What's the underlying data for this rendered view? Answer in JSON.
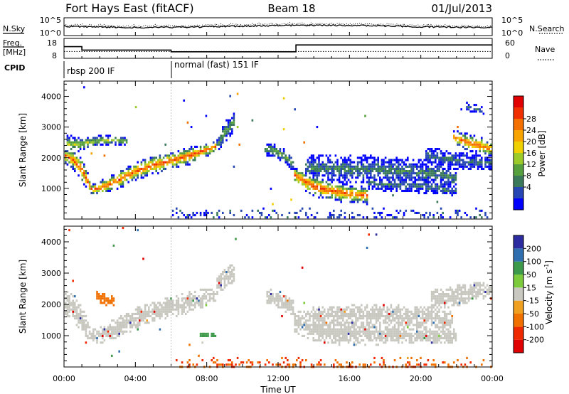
{
  "header": {
    "title": "Fort Hays East (fitACF)",
    "beam": "Beam 18",
    "date": "01/Jul/2013"
  },
  "noise_panel": {
    "left_label": "N.Sky",
    "right_label": "N.Search",
    "left_ticks": [
      "10^5",
      "10^0"
    ],
    "right_ticks": [
      "10^5",
      "10^0"
    ]
  },
  "freq_panel": {
    "left_label_line1": "Freq.",
    "left_label_line2": "[MHz]",
    "right_label": "Nave",
    "left_ticks": [
      18,
      8
    ],
    "right_ticks": [
      60,
      0
    ]
  },
  "cpid_panel": {
    "label": "CPID",
    "segments": [
      {
        "start_hour": 0,
        "end_hour": 6,
        "label": "rbsp 200 IF"
      },
      {
        "start_hour": 6,
        "end_hour": 24,
        "label": "normal (fast) 151 IF"
      }
    ]
  },
  "power_colorbar": {
    "title": "Power [dB]",
    "ticks": [
      4,
      8,
      12,
      16,
      20,
      24,
      28
    ],
    "colors": [
      "#0000ff",
      "#2646b4",
      "#3a7a5a",
      "#56a03e",
      "#9ccb2a",
      "#f0d000",
      "#f7a300",
      "#f47000",
      "#f03000",
      "#e00000"
    ]
  },
  "velocity_colorbar": {
    "title": "Velocity [m s^-1]",
    "title_main": "Velocity [m s",
    "title_sup": "-1",
    "title_end": "]",
    "ticks": [
      200,
      100,
      50,
      15,
      -15,
      -50,
      -100,
      -200
    ],
    "colors": [
      "#2c2ca0",
      "#2f6fb0",
      "#3d9a4a",
      "#7ccb3c",
      "#c8c8c0",
      "#f0a020",
      "#f07000",
      "#f02a00",
      "#e00000"
    ]
  },
  "axes": {
    "xlabel": "Time UT",
    "ylabel": "Slant Range [km]",
    "xticks": [
      "00:00",
      "04:00",
      "08:00",
      "12:00",
      "16:00",
      "20:00",
      "00:00"
    ],
    "yticks": [
      1000,
      2000,
      3000,
      4000
    ]
  },
  "chart_data": {
    "type": "heatmap",
    "x_unit": "hour UT",
    "xlim": [
      0,
      24
    ],
    "ylim": [
      0,
      4500
    ],
    "frequency_mhz": [
      {
        "start_hour": 0,
        "end_hour": 1,
        "value": 14
      },
      {
        "start_hour": 1,
        "end_hour": 6,
        "value": 12
      },
      {
        "start_hour": 6,
        "end_hour": 13,
        "value": 11
      },
      {
        "start_hour": 13,
        "end_hour": 24,
        "value": 15
      }
    ],
    "nave": [
      {
        "start_hour": 0,
        "end_hour": 24,
        "value": 19
      }
    ],
    "power_bands": [
      {
        "x": [
          0.0,
          0.5,
          1.0,
          1.5,
          2.0,
          3.0,
          4.0,
          5.0,
          6.0,
          7.0,
          8.0,
          8.5
        ],
        "center_km": [
          2100,
          1950,
          1600,
          1000,
          1050,
          1300,
          1600,
          1800,
          1950,
          2100,
          2300,
          2400
        ],
        "half_width_km": [
          200,
          300,
          350,
          150,
          200,
          250,
          250,
          280,
          250,
          250,
          200,
          150
        ],
        "peak_db": 27
      },
      {
        "x": [
          0.1,
          0.5,
          1.0,
          1.5,
          2.0,
          3.0,
          3.5
        ],
        "center_km": [
          2500,
          2450,
          2500,
          2550,
          2600,
          2600,
          2550
        ],
        "half_width_km": [
          250,
          250,
          200,
          150,
          150,
          120,
          100
        ],
        "peak_db": 16
      },
      {
        "x": [
          8.5,
          8.8,
          9.0,
          9.3,
          9.5
        ],
        "center_km": [
          2400,
          2700,
          2900,
          3050,
          3200
        ],
        "half_width_km": [
          200,
          250,
          300,
          300,
          300
        ],
        "peak_db": 12
      },
      {
        "x": [
          11.2,
          11.5,
          12.0,
          12.5,
          12.8
        ],
        "center_km": [
          2300,
          2300,
          2200,
          2000,
          1800
        ],
        "half_width_km": [
          150,
          200,
          200,
          200,
          200
        ],
        "peak_db": 13
      },
      {
        "x": [
          12.8,
          13.5,
          14.0,
          15.0,
          16.0,
          17.0
        ],
        "center_km": [
          1500,
          1250,
          1100,
          950,
          850,
          800
        ],
        "half_width_km": [
          200,
          300,
          300,
          300,
          250,
          250
        ],
        "peak_db": 27
      },
      {
        "x": [
          13.5,
          15.0,
          17.0,
          19.0,
          21.0,
          22.0
        ],
        "center_km": [
          1700,
          1650,
          1650,
          1600,
          1500,
          1350
        ],
        "half_width_km": [
          350,
          400,
          400,
          400,
          350,
          300
        ],
        "peak_db": 10
      },
      {
        "x": [
          17.0,
          19.0,
          21.0,
          22.0
        ],
        "center_km": [
          1200,
          1150,
          1050,
          950
        ],
        "half_width_km": [
          200,
          200,
          200,
          150
        ],
        "peak_db": 9
      },
      {
        "x": [
          20.2,
          21.0,
          22.0,
          23.0,
          24.0
        ],
        "center_km": [
          2100,
          2050,
          1950,
          1900,
          1850
        ],
        "half_width_km": [
          250,
          250,
          250,
          250,
          200
        ],
        "peak_db": 9
      },
      {
        "x": [
          21.8,
          22.5,
          23.5,
          24.0
        ],
        "center_km": [
          2700,
          2550,
          2400,
          2300
        ],
        "half_width_km": [
          200,
          250,
          250,
          200
        ],
        "peak_db": 26
      },
      {
        "x": [
          22.5,
          23.0,
          23.5
        ],
        "center_km": [
          3700,
          3650,
          3550
        ],
        "half_width_km": [
          120,
          120,
          100
        ],
        "peak_db": 9
      }
    ],
    "near_range_echoes": {
      "x_range": [
        6,
        24
      ],
      "max_km": 450,
      "peak_db": 6
    },
    "velocity_bands": [
      {
        "x": [
          0.0,
          0.5,
          1.0,
          1.5,
          2.0,
          3.0,
          4.0,
          5.0,
          6.0,
          7.0,
          8.0,
          8.5
        ],
        "center_km": [
          2100,
          1900,
          1500,
          1000,
          1050,
          1300,
          1600,
          1800,
          1950,
          2100,
          2300,
          2400
        ],
        "half_width_km": [
          350,
          400,
          400,
          200,
          250,
          300,
          300,
          300,
          300,
          300,
          250,
          200
        ],
        "velocity_ms": 0
      },
      {
        "x": [
          1.8,
          2.2,
          2.8
        ],
        "center_km": [
          2300,
          2200,
          2150
        ],
        "half_width_km": [
          150,
          200,
          150
        ],
        "velocity_ms": -60
      },
      {
        "x": [
          8.5,
          9.0,
          9.5
        ],
        "center_km": [
          2600,
          2900,
          3100
        ],
        "half_width_km": [
          250,
          300,
          300
        ],
        "velocity_ms": 0
      },
      {
        "x": [
          11.3,
          12.0,
          12.8
        ],
        "center_km": [
          2300,
          2200,
          1900
        ],
        "half_width_km": [
          200,
          250,
          250
        ],
        "velocity_ms": 0
      },
      {
        "x": [
          12.8,
          14.0,
          16.0,
          18.0,
          20.0,
          22.0
        ],
        "center_km": [
          1500,
          1300,
          1100,
          1100,
          1050,
          1000
        ],
        "half_width_km": [
          300,
          400,
          350,
          300,
          250,
          200
        ],
        "velocity_ms": 0
      },
      {
        "x": [
          13.5,
          17.0,
          20.0,
          21.8
        ],
        "center_km": [
          1700,
          1700,
          1650,
          1500
        ],
        "half_width_km": [
          200,
          300,
          300,
          250
        ],
        "velocity_ms": 0
      },
      {
        "x": [
          20.5,
          22.0,
          23.0,
          24.0
        ],
        "center_km": [
          2200,
          2300,
          2450,
          2500
        ],
        "half_width_km": [
          250,
          300,
          250,
          250
        ],
        "velocity_ms": 0
      },
      {
        "x": [
          7.6,
          8.0,
          8.5
        ],
        "center_km": [
          1050,
          1050,
          1050
        ],
        "half_width_km": [
          80,
          80,
          80
        ],
        "velocity_ms": 45
      }
    ],
    "near_range_velocity": {
      "x_range": [
        6,
        24
      ],
      "max_km": 400,
      "velocity_ms": -70
    }
  }
}
